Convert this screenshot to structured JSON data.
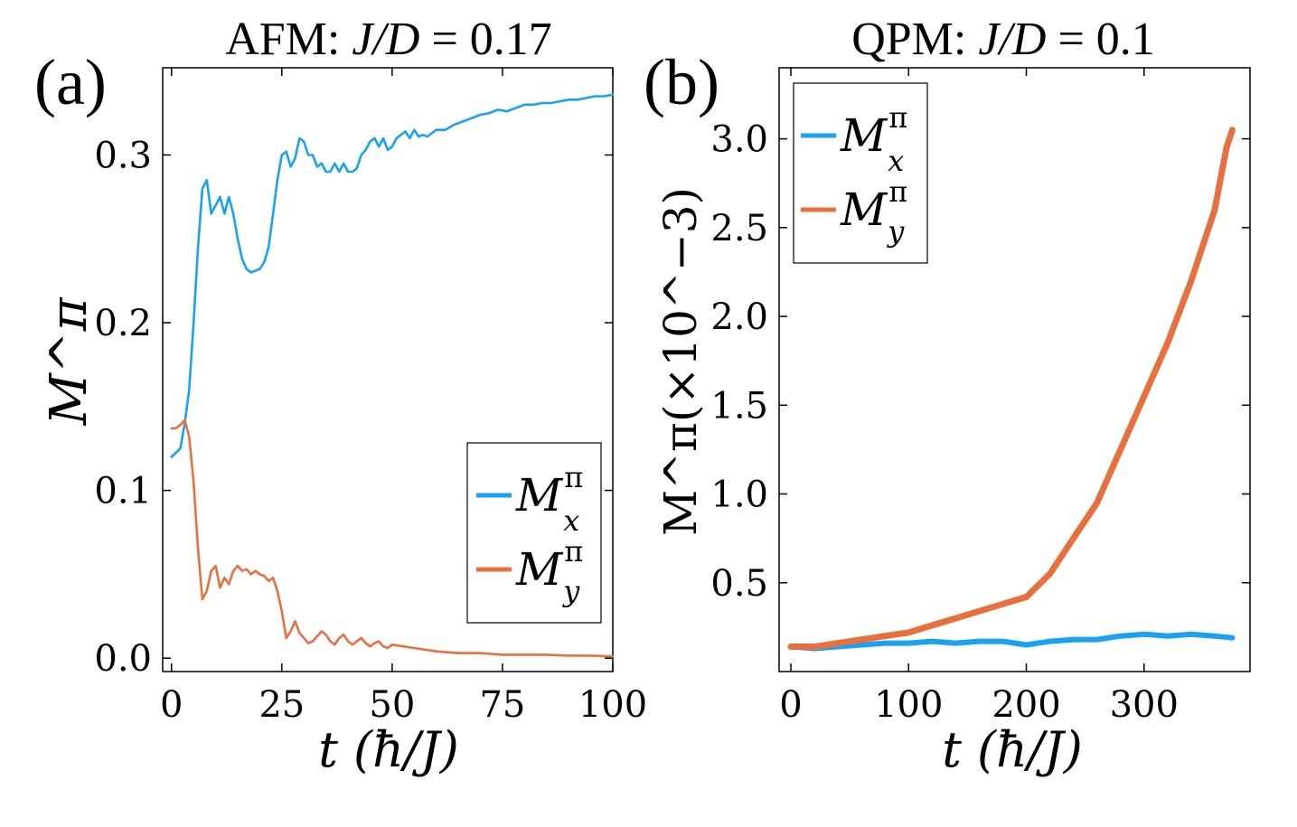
{
  "colors": {
    "mx": "#1aa1f0",
    "my": "#e8703f",
    "axis": "#000000"
  },
  "chart_data": [
    {
      "type": "line",
      "panel_label": "(a)",
      "title_prefix": "AFM: ",
      "title_var": "J/D",
      "title_value": " = 0.17",
      "xlabel": "t (ħ/J)",
      "ylabel": "M^π",
      "xlim": [
        -2,
        100
      ],
      "ylim": [
        -0.008,
        0.352
      ],
      "xticks": [
        0,
        25,
        50,
        75,
        100
      ],
      "xtick_labels": [
        "0",
        "25",
        "50",
        "75",
        "100"
      ],
      "yticks": [
        0.0,
        0.1,
        0.2,
        0.3
      ],
      "ytick_labels": [
        "0.0",
        "0.1",
        "0.2",
        "0.3"
      ],
      "legend_position": "bottom-right",
      "series": [
        {
          "name": "M_x^π",
          "label_main": "M",
          "label_sup": "π",
          "label_sub": "x",
          "color_key": "mx",
          "x": [
            0,
            2,
            3,
            4,
            5,
            6,
            7,
            8,
            9,
            10,
            11,
            12,
            13,
            14,
            15,
            16,
            17,
            18,
            19,
            20,
            21,
            22,
            23,
            24,
            25,
            26,
            27,
            28,
            29,
            30,
            31,
            32,
            33,
            34,
            35,
            36,
            37,
            38,
            39,
            40,
            41,
            42,
            43,
            44,
            45,
            46,
            47,
            48,
            49,
            50,
            51,
            52,
            53,
            54,
            55,
            56,
            57,
            58,
            59,
            60,
            62,
            64,
            66,
            68,
            70,
            72,
            74,
            76,
            78,
            80,
            82,
            84,
            86,
            88,
            90,
            92,
            94,
            96,
            98,
            100
          ],
          "y": [
            0.12,
            0.125,
            0.14,
            0.16,
            0.2,
            0.245,
            0.28,
            0.285,
            0.265,
            0.27,
            0.275,
            0.265,
            0.275,
            0.265,
            0.25,
            0.238,
            0.232,
            0.23,
            0.231,
            0.232,
            0.236,
            0.245,
            0.265,
            0.285,
            0.3,
            0.302,
            0.293,
            0.298,
            0.31,
            0.308,
            0.3,
            0.3,
            0.293,
            0.295,
            0.29,
            0.29,
            0.295,
            0.29,
            0.295,
            0.29,
            0.29,
            0.292,
            0.3,
            0.303,
            0.308,
            0.31,
            0.305,
            0.31,
            0.303,
            0.305,
            0.31,
            0.312,
            0.314,
            0.31,
            0.315,
            0.311,
            0.312,
            0.311,
            0.313,
            0.315,
            0.315,
            0.318,
            0.32,
            0.322,
            0.324,
            0.325,
            0.327,
            0.326,
            0.328,
            0.33,
            0.33,
            0.331,
            0.331,
            0.332,
            0.333,
            0.333,
            0.334,
            0.335,
            0.335,
            0.336
          ]
        },
        {
          "name": "M_y^π",
          "label_main": "M",
          "label_sup": "π",
          "label_sub": "y",
          "color_key": "my",
          "x": [
            0,
            1,
            2,
            3,
            4,
            5,
            6,
            7,
            8,
            9,
            10,
            11,
            12,
            13,
            14,
            15,
            16,
            17,
            18,
            19,
            20,
            21,
            22,
            23,
            24,
            25,
            26,
            27,
            28,
            29,
            30,
            31,
            32,
            33,
            34,
            35,
            36,
            37,
            38,
            39,
            40,
            41,
            42,
            43,
            44,
            45,
            46,
            47,
            48,
            49,
            50,
            55,
            60,
            65,
            70,
            75,
            80,
            85,
            90,
            95,
            100
          ],
          "y": [
            0.137,
            0.137,
            0.139,
            0.142,
            0.132,
            0.105,
            0.065,
            0.035,
            0.04,
            0.052,
            0.055,
            0.042,
            0.048,
            0.044,
            0.052,
            0.055,
            0.052,
            0.053,
            0.05,
            0.052,
            0.05,
            0.049,
            0.046,
            0.048,
            0.04,
            0.028,
            0.012,
            0.016,
            0.022,
            0.015,
            0.012,
            0.009,
            0.01,
            0.013,
            0.016,
            0.014,
            0.01,
            0.008,
            0.012,
            0.014,
            0.01,
            0.008,
            0.01,
            0.012,
            0.009,
            0.007,
            0.009,
            0.01,
            0.007,
            0.006,
            0.008,
            0.006,
            0.004,
            0.003,
            0.003,
            0.002,
            0.002,
            0.002,
            0.0015,
            0.0015,
            0.001
          ]
        }
      ]
    },
    {
      "type": "line",
      "panel_label": "(b)",
      "title_prefix": "QPM: ",
      "title_var": "J/D",
      "title_value": " = 0.1",
      "xlabel": "t (ħ/J)",
      "ylabel": "M^π(×10^−3)",
      "xlim": [
        -10,
        390
      ],
      "ylim": [
        0.0,
        3.4
      ],
      "xticks": [
        0,
        100,
        200,
        300
      ],
      "xtick_labels": [
        "0",
        "100",
        "200",
        "300"
      ],
      "yticks": [
        0.5,
        1.0,
        1.5,
        2.0,
        2.5,
        3.0
      ],
      "ytick_labels": [
        "0.5",
        "1.0",
        "1.5",
        "2.0",
        "2.5",
        "3.0"
      ],
      "legend_position": "top-left",
      "series": [
        {
          "name": "M_x^π",
          "label_main": "M",
          "label_sup": "π",
          "label_sub": "x",
          "color_key": "mx",
          "x": [
            0,
            20,
            40,
            60,
            80,
            100,
            120,
            140,
            160,
            180,
            200,
            220,
            240,
            260,
            280,
            300,
            320,
            340,
            360,
            375
          ],
          "y": [
            0.14,
            0.13,
            0.14,
            0.15,
            0.16,
            0.16,
            0.17,
            0.16,
            0.17,
            0.17,
            0.15,
            0.17,
            0.18,
            0.18,
            0.2,
            0.21,
            0.2,
            0.21,
            0.2,
            0.19
          ]
        },
        {
          "name": "M_y^π",
          "label_main": "M",
          "label_sup": "π",
          "label_sub": "y",
          "color_key": "my",
          "x": [
            0,
            20,
            40,
            60,
            80,
            100,
            120,
            140,
            160,
            180,
            200,
            220,
            240,
            260,
            280,
            300,
            320,
            340,
            360,
            370,
            375
          ],
          "y": [
            0.14,
            0.14,
            0.16,
            0.18,
            0.2,
            0.22,
            0.26,
            0.3,
            0.34,
            0.38,
            0.42,
            0.55,
            0.75,
            0.95,
            1.25,
            1.55,
            1.85,
            2.2,
            2.6,
            2.95,
            3.05
          ]
        }
      ]
    }
  ]
}
